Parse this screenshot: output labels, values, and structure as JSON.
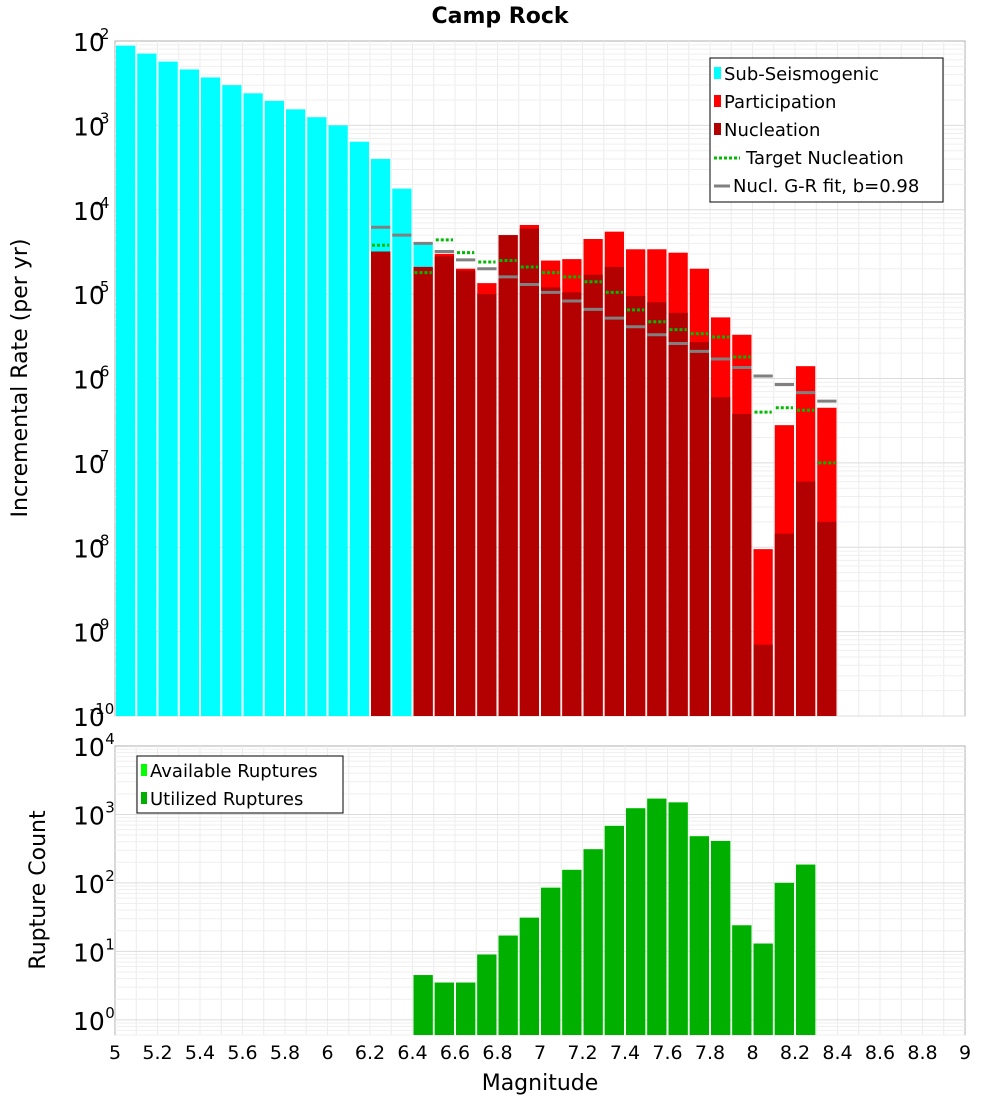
{
  "chart_data": [
    {
      "type": "bar",
      "title": "Camp Rock",
      "xlabel": "",
      "ylabel": "Incremental Rate (per yr)",
      "y_scale": "log",
      "xlim": [
        5,
        9
      ],
      "ylim": [
        1e-10,
        0.01
      ],
      "ytick_labels": [
        {
          "base": "10",
          "exp": "-10"
        },
        {
          "base": "10",
          "exp": "-9"
        },
        {
          "base": "10",
          "exp": "-8"
        },
        {
          "base": "10",
          "exp": "-7"
        },
        {
          "base": "10",
          "exp": "-6"
        },
        {
          "base": "10",
          "exp": "-5"
        },
        {
          "base": "10",
          "exp": "-4"
        },
        {
          "base": "10",
          "exp": "-3"
        },
        {
          "base": "10",
          "exp": "-2"
        }
      ],
      "grid": true,
      "legend_position": "top-right",
      "series": [
        {
          "name": "Sub-Seismogenic",
          "color": "#00ffff",
          "x": [
            5.05,
            5.15,
            5.25,
            5.35,
            5.45,
            5.55,
            5.65,
            5.75,
            5.85,
            5.95,
            6.05,
            6.15,
            6.25,
            6.35,
            6.45
          ],
          "values": [
            0.0088,
            0.0071,
            0.0057,
            0.0046,
            0.0037,
            0.003,
            0.0024,
            0.00195,
            0.00155,
            0.00125,
            0.001,
            0.00064,
            0.0004,
            0.000178,
            4e-05
          ]
        },
        {
          "name": "Participation",
          "color": "#ff0000",
          "x": [
            6.25,
            6.45,
            6.55,
            6.65,
            6.75,
            6.85,
            6.95,
            7.05,
            7.15,
            7.25,
            7.35,
            7.45,
            7.55,
            7.65,
            7.75,
            7.85,
            7.95,
            8.05,
            8.15,
            8.25,
            8.35
          ],
          "values": [
            3.2e-05,
            2.1e-05,
            3e-05,
            2e-05,
            1.35e-05,
            5e-05,
            6.6e-05,
            2.5e-05,
            2.6e-05,
            4.5e-05,
            5.5e-05,
            3.4e-05,
            3.4e-05,
            3.1e-05,
            2e-05,
            5.3e-06,
            3.3e-06,
            9.5e-09,
            2.8e-07,
            1.4e-06,
            4.5e-07
          ]
        },
        {
          "name": "Nucleation",
          "color": "#b30000",
          "x": [
            6.25,
            6.45,
            6.55,
            6.65,
            6.75,
            6.85,
            6.95,
            7.05,
            7.15,
            7.25,
            7.35,
            7.45,
            7.55,
            7.65,
            7.75,
            7.85,
            7.95,
            8.05,
            8.15,
            8.25,
            8.35
          ],
          "values": [
            3.2e-05,
            2.1e-05,
            2.8e-05,
            1.9e-05,
            1e-05,
            5e-05,
            6e-05,
            1.2e-05,
            1.05e-05,
            1.7e-05,
            2.1e-05,
            9.5e-06,
            8e-06,
            6e-06,
            2.7e-06,
            6e-07,
            3.8e-07,
            7e-10,
            1.45e-08,
            6e-08,
            2e-08
          ]
        },
        {
          "name": "Target Nucleation",
          "color": "#00bb00",
          "style": "dotted",
          "x": [
            6.25,
            6.45,
            6.55,
            6.65,
            6.75,
            6.85,
            6.95,
            7.05,
            7.15,
            7.25,
            7.35,
            7.45,
            7.55,
            7.65,
            7.75,
            7.85,
            7.95,
            8.05,
            8.15,
            8.25,
            8.35
          ],
          "values": [
            3.8e-05,
            1.8e-05,
            4.4e-05,
            3.1e-05,
            2.4e-05,
            2.5e-05,
            2.1e-05,
            1.8e-05,
            1.6e-05,
            1.4e-05,
            1.05e-05,
            6.5e-06,
            4.7e-06,
            3.8e-06,
            3.4e-06,
            3.1e-06,
            1.8e-06,
            4e-07,
            4.5e-07,
            4.2e-07,
            1e-07
          ]
        },
        {
          "name": "Nucl. G-R fit, b=0.98",
          "color": "#808080",
          "style": "dash",
          "x": [
            6.25,
            6.35,
            6.45,
            6.55,
            6.65,
            6.75,
            6.85,
            6.95,
            7.05,
            7.15,
            7.25,
            7.35,
            7.45,
            7.55,
            7.65,
            7.75,
            7.85,
            7.95,
            8.05,
            8.15,
            8.25,
            8.35
          ],
          "values": [
            6.2e-05,
            5e-05,
            4e-05,
            3.2e-05,
            2.55e-05,
            2e-05,
            1.6e-05,
            1.3e-05,
            1.05e-05,
            8.3e-06,
            6.6e-06,
            5.2e-06,
            4.1e-06,
            3.3e-06,
            2.6e-06,
            2.1e-06,
            1.7e-06,
            1.35e-06,
            1.07e-06,
            8.5e-07,
            6.8e-07,
            5.4e-07
          ]
        }
      ]
    },
    {
      "type": "bar",
      "xlabel": "Magnitude",
      "ylabel": "Rupture Count",
      "y_scale": "log",
      "xlim": [
        5,
        9
      ],
      "ylim": [
        0.6,
        10000
      ],
      "xtick_labels": [
        "5",
        "5.2",
        "5.4",
        "5.6",
        "5.8",
        "6",
        "6.2",
        "6.4",
        "6.6",
        "6.8",
        "7",
        "7.2",
        "7.4",
        "7.6",
        "7.8",
        "8",
        "8.2",
        "8.4",
        "8.6",
        "8.8",
        "9"
      ],
      "ytick_labels": [
        {
          "base": "10",
          "exp": "0"
        },
        {
          "base": "10",
          "exp": "1"
        },
        {
          "base": "10",
          "exp": "2"
        },
        {
          "base": "10",
          "exp": "3"
        },
        {
          "base": "10",
          "exp": "4"
        }
      ],
      "grid": true,
      "legend_position": "top-left",
      "series": [
        {
          "name": "Available Ruptures",
          "color": "#00ff00",
          "x": [
            6.45,
            6.55,
            6.65,
            6.75,
            6.85,
            6.95,
            7.05,
            7.15,
            7.25,
            7.35,
            7.45,
            7.55,
            7.65,
            7.75,
            7.85,
            7.95,
            8.05,
            8.15,
            8.25
          ],
          "values": [
            4.5,
            3.5,
            3.5,
            9,
            17,
            31,
            85,
            155,
            310,
            680,
            1230,
            1700,
            1500,
            480,
            410,
            24,
            13,
            100,
            185
          ]
        },
        {
          "name": "Utilized Ruptures",
          "color": "#00b000",
          "x": [
            6.45,
            6.55,
            6.65,
            6.75,
            6.85,
            6.95,
            7.05,
            7.15,
            7.25,
            7.35,
            7.45,
            7.55,
            7.65,
            7.75,
            7.85,
            7.95,
            8.05,
            8.15,
            8.25
          ],
          "values": [
            4.5,
            3.5,
            3.5,
            9,
            17,
            31,
            85,
            155,
            310,
            680,
            1230,
            1700,
            1500,
            480,
            410,
            24,
            13,
            100,
            185
          ]
        }
      ]
    }
  ]
}
